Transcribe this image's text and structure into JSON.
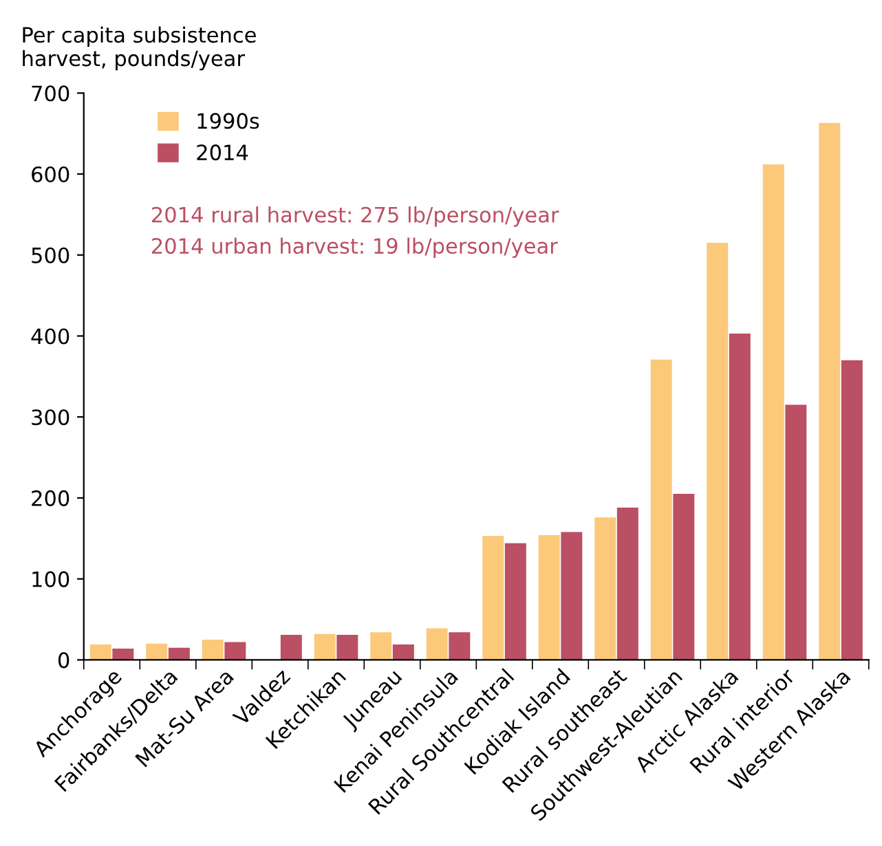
{
  "chart_data": {
    "type": "bar",
    "ylabel": "Per capita subsistence\nharvest, pounds/year",
    "categories": [
      "Anchorage",
      "Fairbanks/Delta",
      "Mat-Su Area",
      "Valdez",
      "Ketchikan",
      "Juneau",
      "Kenai Peninsula",
      "Rural Southcentral",
      "Kodiak Island",
      "Rural southeast",
      "Southwest-Aleutian",
      "Arctic Alaska",
      "Rural interior",
      "Western Alaska"
    ],
    "series": [
      {
        "name": "1990s",
        "color": "#fbc979",
        "values": [
          19,
          20,
          25,
          null,
          32,
          34,
          39,
          153,
          154,
          176,
          371,
          515,
          612,
          663
        ]
      },
      {
        "name": "2014",
        "color": "#bb4f63",
        "values": [
          14,
          15,
          22,
          31,
          31,
          19,
          34,
          144,
          158,
          188,
          205,
          403,
          315,
          370
        ]
      }
    ],
    "annotations": [
      "2014 rural harvest: 275 lb/person/year",
      "2014 urban harvest: 19 lb/person/year"
    ],
    "ylim": [
      0,
      700
    ],
    "yticks": [
      0,
      100,
      200,
      300,
      400,
      500,
      600,
      700
    ],
    "legend": "top left",
    "grid": false
  }
}
